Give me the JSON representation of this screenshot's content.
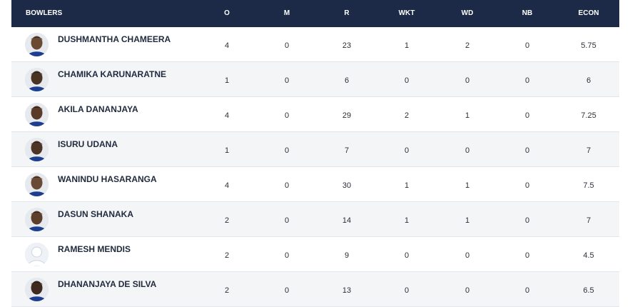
{
  "header": {
    "bowlers": "BOWLERS",
    "o": "O",
    "m": "M",
    "r": "R",
    "wkt": "WKT",
    "wd": "WD",
    "nb": "NB",
    "econ": "ECON"
  },
  "rows": [
    {
      "name": "DUSHMANTHA CHAMEERA",
      "o": "4",
      "m": "0",
      "r": "23",
      "wkt": "1",
      "wd": "2",
      "nb": "0",
      "econ": "5.75",
      "avatar": "player-photo"
    },
    {
      "name": "CHAMIKA KARUNARATNE",
      "o": "1",
      "m": "0",
      "r": "6",
      "wkt": "0",
      "wd": "0",
      "nb": "0",
      "econ": "6",
      "avatar": "player-photo"
    },
    {
      "name": "AKILA DANANJAYA",
      "o": "4",
      "m": "0",
      "r": "29",
      "wkt": "2",
      "wd": "1",
      "nb": "0",
      "econ": "7.25",
      "avatar": "player-photo"
    },
    {
      "name": "ISURU UDANA",
      "o": "1",
      "m": "0",
      "r": "7",
      "wkt": "0",
      "wd": "0",
      "nb": "0",
      "econ": "7",
      "avatar": "player-photo"
    },
    {
      "name": "WANINDU HASARANGA",
      "o": "4",
      "m": "0",
      "r": "30",
      "wkt": "1",
      "wd": "1",
      "nb": "0",
      "econ": "7.5",
      "avatar": "player-photo"
    },
    {
      "name": "DASUN SHANAKA",
      "o": "2",
      "m": "0",
      "r": "14",
      "wkt": "1",
      "wd": "1",
      "nb": "0",
      "econ": "7",
      "avatar": "player-photo"
    },
    {
      "name": "RAMESH MENDIS",
      "o": "2",
      "m": "0",
      "r": "9",
      "wkt": "0",
      "wd": "0",
      "nb": "0",
      "econ": "4.5",
      "avatar": "placeholder-silhouette"
    },
    {
      "name": "DHANANJAYA DE SILVA",
      "o": "2",
      "m": "0",
      "r": "13",
      "wkt": "0",
      "wd": "0",
      "nb": "0",
      "econ": "6.5",
      "avatar": "player-photo"
    }
  ],
  "colors": {
    "header_bg": "#1c2a48",
    "header_text": "#ffffff",
    "alt_row_bg": "#f4f5f7",
    "text": "#1f2a3d"
  }
}
